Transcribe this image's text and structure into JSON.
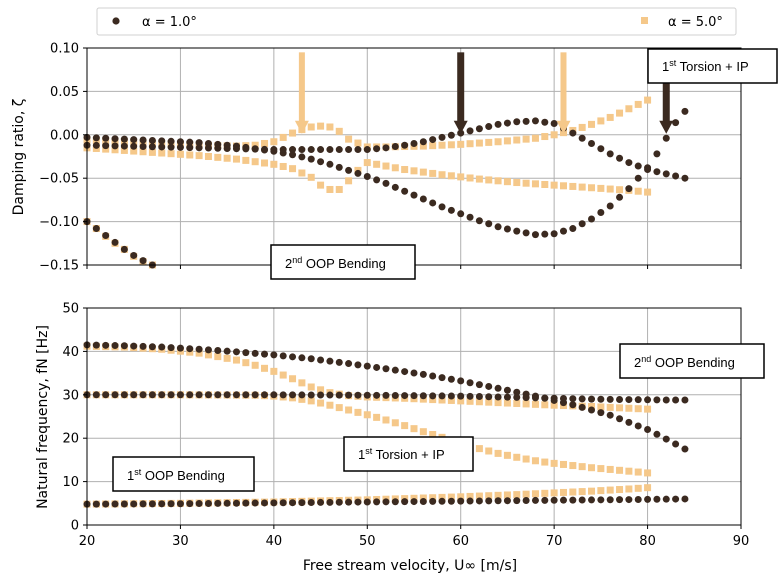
{
  "chart_data": [
    {
      "type": "scatter",
      "title": "",
      "xlabel": "",
      "ylabel": "Damping ratio, ζ",
      "xlim": [
        20,
        90
      ],
      "ylim": [
        -0.15,
        0.1
      ],
      "xticks": [
        "20",
        "30",
        "40",
        "50",
        "60",
        "70",
        "80",
        "90"
      ],
      "yticks": [
        "−0.15",
        "−0.10",
        "−0.05",
        "0.00",
        "0.05",
        "0.10"
      ],
      "grid": true,
      "series": [
        {
          "name": "α = 1.0°",
          "color": "#3b2a20",
          "marker": "circle",
          "branches": [
            [
              [
                20,
                -0.003
              ],
              [
                22,
                -0.004
              ],
              [
                24,
                -0.005
              ],
              [
                26,
                -0.006
              ],
              [
                28,
                -0.007
              ],
              [
                30,
                -0.008
              ],
              [
                32,
                -0.009
              ],
              [
                34,
                -0.011
              ],
              [
                36,
                -0.013
              ],
              [
                38,
                -0.016
              ],
              [
                40,
                -0.019
              ],
              [
                42,
                -0.023
              ],
              [
                44,
                -0.028
              ],
              [
                46,
                -0.034
              ],
              [
                48,
                -0.041
              ],
              [
                50,
                -0.048
              ],
              [
                52,
                -0.056
              ],
              [
                54,
                -0.065
              ],
              [
                56,
                -0.074
              ],
              [
                58,
                -0.083
              ],
              [
                60,
                -0.091
              ],
              [
                62,
                -0.099
              ],
              [
                64,
                -0.106
              ],
              [
                66,
                -0.111
              ],
              [
                68,
                -0.115
              ],
              [
                70,
                -0.114
              ],
              [
                72,
                -0.108
              ],
              [
                74,
                -0.097
              ],
              [
                76,
                -0.082
              ],
              [
                78,
                -0.062
              ],
              [
                80,
                -0.038
              ],
              [
                81,
                -0.022
              ],
              [
                82,
                -0.004
              ],
              [
                83,
                0.014
              ],
              [
                84,
                0.027
              ]
            ],
            [
              [
                20,
                -0.012
              ],
              [
                24,
                -0.013
              ],
              [
                28,
                -0.014
              ],
              [
                32,
                -0.015
              ],
              [
                36,
                -0.016
              ],
              [
                40,
                -0.017
              ],
              [
                44,
                -0.017
              ],
              [
                48,
                -0.017
              ],
              [
                50,
                -0.017
              ],
              [
                52,
                -0.015
              ],
              [
                54,
                -0.012
              ],
              [
                56,
                -0.008
              ],
              [
                58,
                -0.003
              ],
              [
                60,
                0.002
              ],
              [
                62,
                0.007
              ],
              [
                64,
                0.012
              ],
              [
                66,
                0.015
              ],
              [
                68,
                0.016
              ],
              [
                70,
                0.013
              ],
              [
                72,
                0.002
              ],
              [
                74,
                -0.01
              ],
              [
                76,
                -0.022
              ],
              [
                78,
                -0.032
              ],
              [
                80,
                -0.04
              ],
              [
                82,
                -0.045
              ],
              [
                84,
                -0.05
              ]
            ],
            [
              [
                20,
                -0.1
              ],
              [
                21,
                -0.108
              ],
              [
                22,
                -0.116
              ],
              [
                23,
                -0.124
              ],
              [
                24,
                -0.132
              ],
              [
                25,
                -0.139
              ],
              [
                26,
                -0.145
              ],
              [
                27,
                -0.15
              ]
            ]
          ]
        },
        {
          "name": "α = 5.0°",
          "color": "#f5c88a",
          "marker": "square",
          "branches": [
            [
              [
                20,
                -0.006
              ],
              [
                24,
                -0.008
              ],
              [
                28,
                -0.01
              ],
              [
                32,
                -0.012
              ],
              [
                36,
                -0.013
              ],
              [
                38,
                -0.012
              ],
              [
                40,
                -0.008
              ],
              [
                41,
                -0.003
              ],
              [
                42,
                0.002
              ],
              [
                43,
                0.006
              ],
              [
                44,
                0.009
              ],
              [
                45,
                0.01
              ],
              [
                46,
                0.009
              ],
              [
                47,
                0.004
              ],
              [
                48,
                -0.005
              ],
              [
                50,
                -0.014
              ],
              [
                52,
                -0.014
              ],
              [
                56,
                -0.013
              ],
              [
                60,
                -0.011
              ],
              [
                64,
                -0.008
              ],
              [
                68,
                -0.004
              ],
              [
                70,
                0.0
              ],
              [
                72,
                0.005
              ],
              [
                74,
                0.012
              ],
              [
                76,
                0.02
              ],
              [
                78,
                0.03
              ],
              [
                80,
                0.04
              ]
            ],
            [
              [
                20,
                -0.015
              ],
              [
                24,
                -0.018
              ],
              [
                28,
                -0.021
              ],
              [
                32,
                -0.024
              ],
              [
                36,
                -0.028
              ],
              [
                40,
                -0.034
              ],
              [
                42,
                -0.039
              ],
              [
                44,
                -0.049
              ],
              [
                45,
                -0.058
              ],
              [
                46,
                -0.063
              ],
              [
                47,
                -0.063
              ],
              [
                48,
                -0.053
              ],
              [
                49,
                -0.041
              ],
              [
                50,
                -0.032
              ],
              [
                54,
                -0.04
              ],
              [
                58,
                -0.046
              ],
              [
                62,
                -0.051
              ],
              [
                66,
                -0.055
              ],
              [
                70,
                -0.058
              ],
              [
                74,
                -0.061
              ],
              [
                78,
                -0.064
              ],
              [
                80,
                -0.066
              ]
            ],
            [
              [
                20,
                -0.1
              ],
              [
                21,
                -0.108
              ],
              [
                22,
                -0.117
              ],
              [
                23,
                -0.125
              ],
              [
                24,
                -0.132
              ],
              [
                25,
                -0.14
              ],
              [
                26,
                -0.146
              ],
              [
                27,
                -0.15
              ]
            ]
          ]
        }
      ],
      "arrows": [
        {
          "x": 43,
          "color": "#f5c88a"
        },
        {
          "x": 60,
          "color": "#3b2a20"
        },
        {
          "x": 71,
          "color": "#f5c88a"
        },
        {
          "x": 82,
          "color": "#3b2a20"
        }
      ],
      "annotations": [
        {
          "text": "1st Torsion + IP",
          "main": "1",
          "sup": "st",
          "rest": " Torsion + IP"
        },
        {
          "text": "2nd OOP Bending",
          "main": "2",
          "sup": "nd",
          "rest": " OOP Bending"
        }
      ]
    },
    {
      "type": "scatter",
      "title": "",
      "xlabel": "Free stream velocity, U∞ [m/s]",
      "ylabel": "Natural frequency, fN [Hz]",
      "xlim": [
        20,
        90
      ],
      "ylim": [
        0,
        50
      ],
      "xticks": [
        "20",
        "30",
        "40",
        "50",
        "60",
        "70",
        "80",
        "90"
      ],
      "yticks": [
        "0",
        "10",
        "20",
        "30",
        "40",
        "50"
      ],
      "grid": true,
      "series": [
        {
          "name": "α = 1.0°",
          "color": "#3b2a20",
          "marker": "circle",
          "branches": [
            [
              [
                20,
                41.5
              ],
              [
                24,
                41.3
              ],
              [
                28,
                41.0
              ],
              [
                32,
                40.5
              ],
              [
                36,
                39.9
              ],
              [
                40,
                39.2
              ],
              [
                44,
                38.3
              ],
              [
                48,
                37.2
              ],
              [
                52,
                36.0
              ],
              [
                56,
                34.7
              ],
              [
                60,
                33.2
              ],
              [
                64,
                31.5
              ],
              [
                68,
                29.7
              ],
              [
                72,
                27.7
              ],
              [
                76,
                25.3
              ],
              [
                80,
                22.0
              ],
              [
                82,
                19.8
              ],
              [
                84,
                17.5
              ]
            ],
            [
              [
                20,
                30.0
              ],
              [
                30,
                30.0
              ],
              [
                40,
                30.0
              ],
              [
                50,
                29.9
              ],
              [
                60,
                29.7
              ],
              [
                66,
                29.4
              ],
              [
                70,
                29.2
              ],
              [
                74,
                29.0
              ],
              [
                78,
                28.9
              ],
              [
                82,
                28.8
              ],
              [
                84,
                28.8
              ]
            ],
            [
              [
                20,
                4.8
              ],
              [
                30,
                4.9
              ],
              [
                40,
                5.1
              ],
              [
                50,
                5.3
              ],
              [
                60,
                5.5
              ],
              [
                70,
                5.7
              ],
              [
                80,
                5.9
              ],
              [
                84,
                6.0
              ]
            ]
          ]
        },
        {
          "name": "α = 5.0°",
          "color": "#f5c88a",
          "marker": "square",
          "branches": [
            [
              [
                20,
                41.2
              ],
              [
                24,
                41.0
              ],
              [
                28,
                40.5
              ],
              [
                32,
                39.6
              ],
              [
                36,
                38.0
              ],
              [
                38,
                36.8
              ],
              [
                40,
                35.4
              ],
              [
                42,
                33.7
              ],
              [
                44,
                31.8
              ],
              [
                46,
                30.5
              ],
              [
                48,
                29.8
              ],
              [
                50,
                29.5
              ],
              [
                54,
                29.2
              ],
              [
                58,
                28.8
              ],
              [
                62,
                28.4
              ],
              [
                66,
                28.0
              ],
              [
                70,
                27.6
              ],
              [
                74,
                27.3
              ],
              [
                78,
                26.9
              ],
              [
                80,
                26.7
              ]
            ],
            [
              [
                20,
                30.0
              ],
              [
                30,
                30.0
              ],
              [
                38,
                29.9
              ],
              [
                40,
                29.7
              ],
              [
                42,
                29.3
              ],
              [
                44,
                28.6
              ],
              [
                46,
                27.6
              ],
              [
                48,
                26.5
              ],
              [
                50,
                25.4
              ],
              [
                52,
                24.2
              ],
              [
                54,
                22.9
              ],
              [
                56,
                21.5
              ],
              [
                58,
                20.2
              ],
              [
                60,
                18.9
              ],
              [
                62,
                17.6
              ],
              [
                64,
                16.5
              ],
              [
                66,
                15.6
              ],
              [
                68,
                14.8
              ],
              [
                70,
                14.2
              ],
              [
                74,
                13.2
              ],
              [
                78,
                12.4
              ],
              [
                80,
                12.0
              ]
            ],
            [
              [
                20,
                4.8
              ],
              [
                30,
                5.0
              ],
              [
                40,
                5.3
              ],
              [
                50,
                5.8
              ],
              [
                60,
                6.5
              ],
              [
                66,
                7.0
              ],
              [
                70,
                7.4
              ],
              [
                74,
                7.8
              ],
              [
                78,
                8.3
              ],
              [
                80,
                8.6
              ]
            ]
          ]
        }
      ],
      "annotations": [
        {
          "text": "2nd OOP Bending",
          "main": "2",
          "sup": "nd",
          "rest": " OOP Bending"
        },
        {
          "text": "1st Torsion + IP",
          "main": "1",
          "sup": "st",
          "rest": " Torsion + IP"
        },
        {
          "text": "1st OOP Bending",
          "main": "1",
          "sup": "st",
          "rest": " OOP Bending"
        }
      ]
    }
  ],
  "legend": {
    "placement": "top",
    "entries": [
      {
        "label": "α = 1.0°",
        "color": "#3b2a20",
        "marker": "circle"
      },
      {
        "label": "α = 5.0°",
        "color": "#f5c88a",
        "marker": "square"
      }
    ]
  }
}
